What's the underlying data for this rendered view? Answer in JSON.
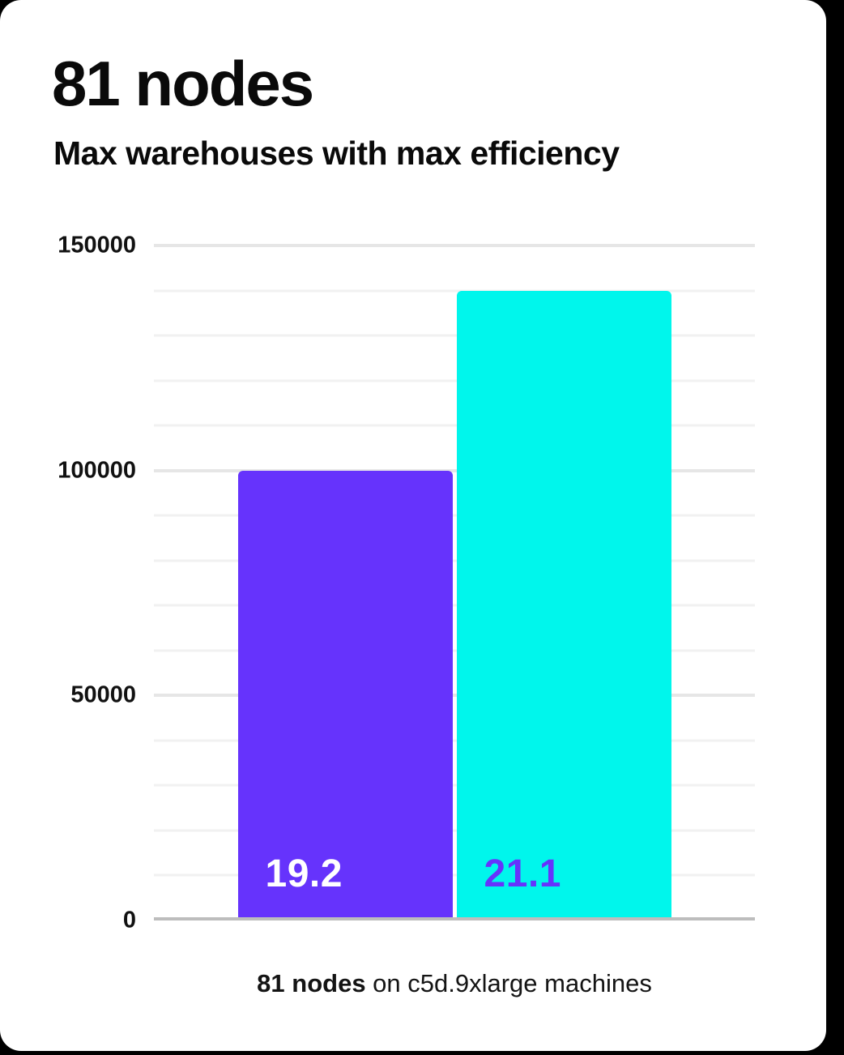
{
  "page": {
    "background_color": "#000000",
    "card_color": "#ffffff"
  },
  "header": {
    "title": "81 nodes",
    "subtitle": "Max warehouses with max efficiency"
  },
  "chart_data": {
    "type": "bar",
    "title": "81 nodes",
    "subtitle": "Max warehouses with max efficiency",
    "categories": [
      "19.2",
      "21.1"
    ],
    "values": [
      100000,
      140000
    ],
    "bar_labels": [
      "19.2",
      "21.1"
    ],
    "bar_colors": [
      "#6633fc",
      "#00f6ec"
    ],
    "bar_label_colors": [
      "#ffffff",
      "#6633fc"
    ],
    "xlabel": "",
    "ylabel": "",
    "ylim": [
      0,
      150000
    ],
    "ytick_labels": [
      "0",
      "50000",
      "100000",
      "150000"
    ],
    "ytick_major_step": 50000,
    "ytick_minor_step": 10000,
    "grid": "horizontal-minor-and-major",
    "legend": "none",
    "gridline_minor_color": "#f1f1f1",
    "gridline_major_color": "#e6e6e6",
    "axis_baseline_color": "#bdbdbd",
    "caption": {
      "bold": "81 nodes",
      "rest": " on c5d.9xlarge machines"
    }
  }
}
